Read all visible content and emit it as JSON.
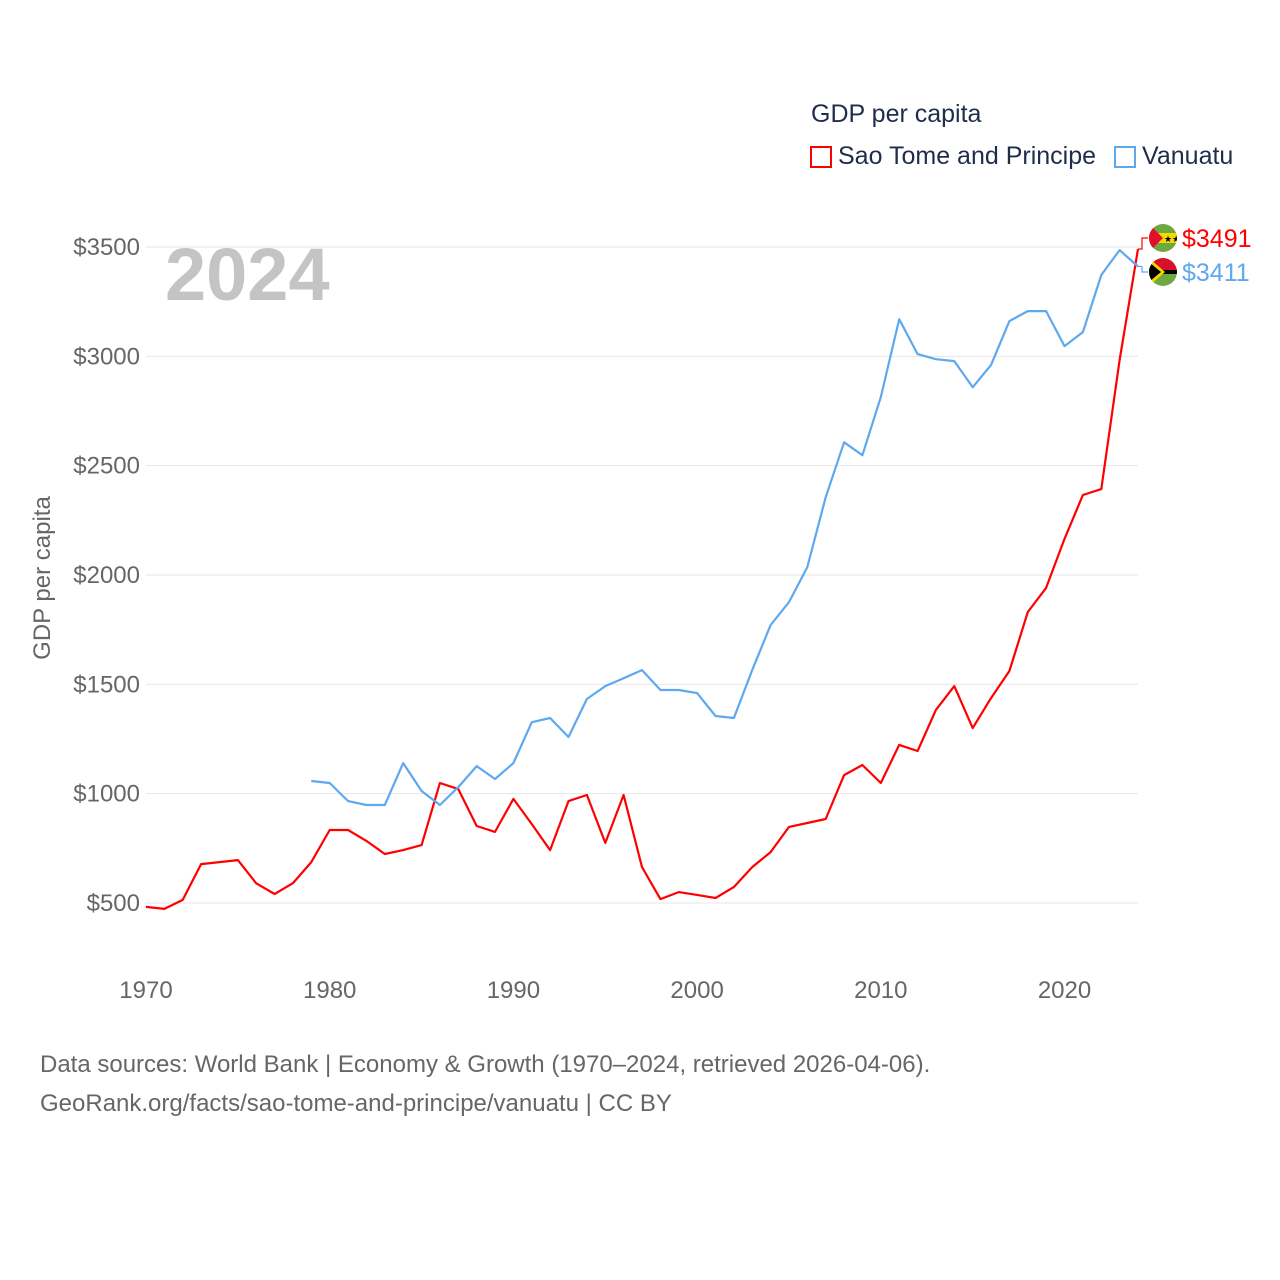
{
  "legend": {
    "title": "GDP per capita",
    "items": [
      {
        "label": "Sao Tome and Principe",
        "color": "#ff0000"
      },
      {
        "label": "Vanuatu",
        "color": "#5fa8ee"
      }
    ]
  },
  "year_watermark": "2024",
  "end_labels": [
    {
      "country": "Sao Tome and Principe",
      "flag": "sao-tome-flag-icon",
      "value_label": "$3491",
      "color": "#ff0000"
    },
    {
      "country": "Vanuatu",
      "flag": "vanuatu-flag-icon",
      "value_label": "$3411",
      "color": "#5fa8ee"
    }
  ],
  "footer": {
    "line1": "Data sources: World Bank | Economy & Growth (1970–2024, retrieved 2026-04-06).",
    "line2": "GeoRank.org/facts/sao-tome-and-principe/vanuatu | CC BY"
  },
  "chart_data": {
    "type": "line",
    "title": "GDP per capita",
    "xlabel": "",
    "ylabel": "GDP per capita",
    "xlim": [
      1970,
      2024
    ],
    "ylim": [
      250,
      3600
    ],
    "x_ticks": [
      1970,
      1980,
      1990,
      2000,
      2010,
      2020
    ],
    "x_tick_labels": [
      "1970",
      "1980",
      "1990",
      "2000",
      "2010",
      "2020"
    ],
    "y_ticks": [
      500,
      1000,
      1500,
      2000,
      2500,
      3000,
      3500
    ],
    "y_tick_labels": [
      "$500",
      "$1000",
      "$1500",
      "$2000",
      "$2500",
      "$3000",
      "$3500"
    ],
    "grid": true,
    "legend_position": "top-right",
    "series": [
      {
        "name": "Sao Tome and Principe",
        "color": "#ff0000",
        "start_year": 1970,
        "values": [
          482,
          473,
          514,
          678,
          687,
          696,
          590,
          541,
          591,
          687,
          834,
          834,
          784,
          724,
          742,
          765,
          1049,
          1021,
          852,
          825,
          976,
          861,
          742,
          966,
          994,
          775,
          994,
          664,
          518,
          550,
          537,
          523,
          573,
          664,
          733,
          848,
          866,
          884,
          1085,
          1131,
          1049,
          1223,
          1195,
          1383,
          1492,
          1300,
          1437,
          1561,
          1831,
          1941,
          2165,
          2366,
          2393,
          2983,
          3491
        ]
      },
      {
        "name": "Vanuatu",
        "color": "#5fa8ee",
        "start_year": 1979,
        "values": [
          1058,
          1049,
          966,
          948,
          948,
          1140,
          1012,
          948,
          1030,
          1126,
          1067,
          1140,
          1327,
          1346,
          1259,
          1433,
          1492,
          1528,
          1565,
          1474,
          1474,
          1460,
          1355,
          1346,
          1565,
          1771,
          1876,
          2036,
          2356,
          2607,
          2548,
          2813,
          3170,
          3010,
          2987,
          2978,
          2859,
          2960,
          3161,
          3207,
          3207,
          3047,
          3111,
          3372,
          3486,
          3411
        ]
      }
    ]
  }
}
